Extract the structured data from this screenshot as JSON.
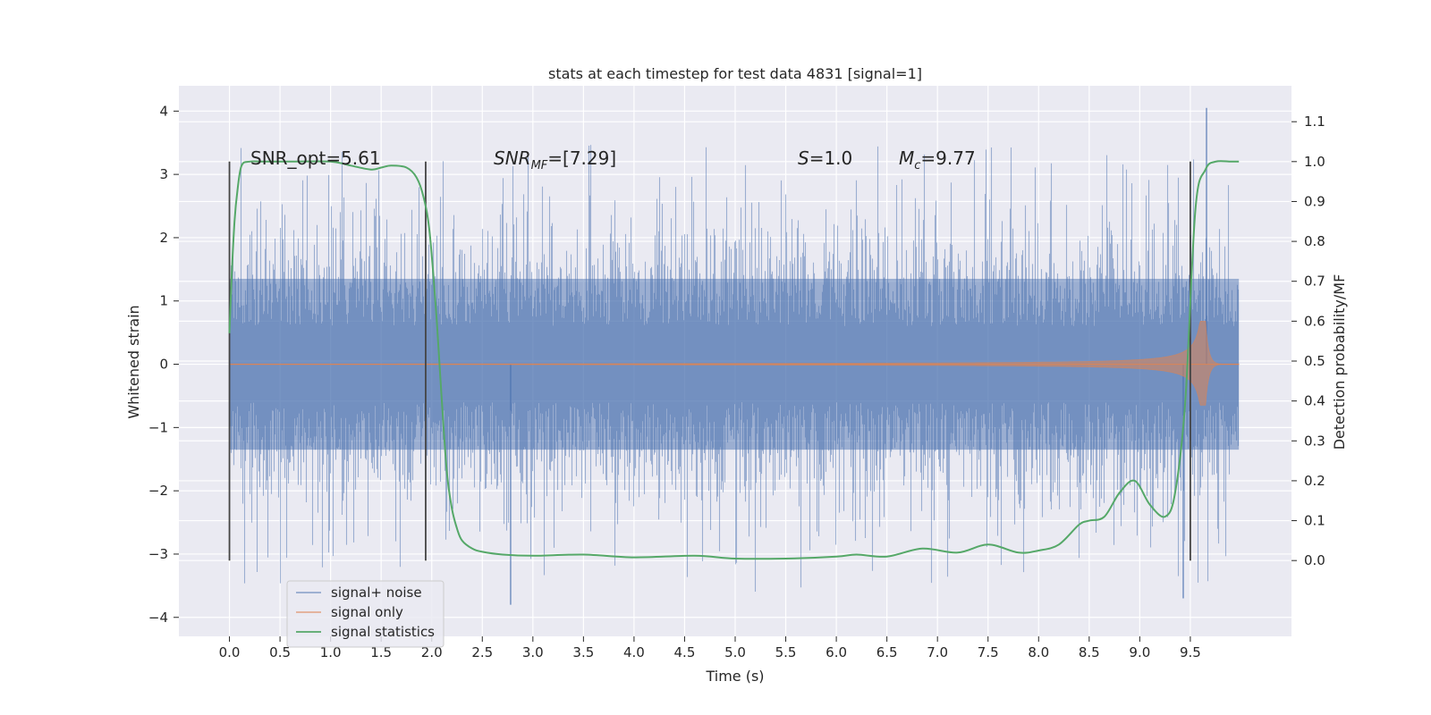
{
  "chart_data": {
    "type": "line",
    "title": "stats at each timestep for test data 4831 [signal=1]",
    "xlabel": "Time (s)",
    "ylabel_left": "Whitened strain",
    "ylabel_right": "Detection probability/MF",
    "xlim": [
      -0.5,
      10.5
    ],
    "ylim_left": [
      -4.3,
      4.4
    ],
    "ylim_right": [
      -0.19,
      1.19
    ],
    "x_ticks": [
      0.0,
      0.5,
      1.0,
      1.5,
      2.0,
      2.5,
      3.0,
      3.5,
      4.0,
      4.5,
      5.0,
      5.5,
      6.0,
      6.5,
      7.0,
      7.5,
      8.0,
      8.5,
      9.0,
      9.5
    ],
    "x_tick_labels": [
      "0.0",
      "0.5",
      "1.0",
      "1.5",
      "2.0",
      "2.5",
      "3.0",
      "3.5",
      "4.0",
      "4.5",
      "5.0",
      "5.5",
      "6.0",
      "6.5",
      "7.0",
      "7.5",
      "8.0",
      "8.5",
      "9.0",
      "9.5"
    ],
    "y_ticks_left": [
      4,
      3,
      2,
      1,
      0,
      -1,
      -2,
      -3,
      -4
    ],
    "y_tick_labels_left": [
      "4",
      "3",
      "2",
      "1",
      "0",
      "−1",
      "−2",
      "−3",
      "−4"
    ],
    "y_ticks_right": [
      1.1,
      1.0,
      0.9,
      0.8,
      0.7,
      0.6,
      0.5,
      0.4,
      0.3,
      0.2,
      0.1,
      0.0
    ],
    "y_tick_labels_right": [
      "1.1",
      "1.0",
      "0.9",
      "0.8",
      "0.7",
      "0.6",
      "0.5",
      "0.4",
      "0.3",
      "0.2",
      "0.1",
      "0.0"
    ],
    "annotations": {
      "snr_opt": "SNR_opt=5.61",
      "snr_mf_prefix": "SNR",
      "snr_mf_sub": "MF",
      "snr_mf_value": "=[7.29]",
      "s_label": "S",
      "s_value": "=1.0",
      "mc_label": "M",
      "mc_sub": "c",
      "mc_value": "=9.77"
    },
    "legend": {
      "position": "lower-left",
      "entries": [
        "signal+ noise",
        "signal only",
        "signal statistics"
      ]
    },
    "series": [
      {
        "name": "signal+ noise",
        "axis": "left",
        "color": "#4c72b0",
        "style": "dense noise, amplitude ~1.3 core with spikes to ±3.5",
        "x_range": [
          0.0,
          9.98
        ],
        "peak_max": 4.05,
        "peak_min": -3.8
      },
      {
        "name": "signal only",
        "axis": "left",
        "color": "#dd8452",
        "style": "chirp growing towards merger",
        "x_range": [
          0.0,
          9.98
        ],
        "merger_time": 9.65,
        "peak_amplitude": 0.68
      },
      {
        "name": "signal statistics",
        "axis": "right",
        "color": "#55a868",
        "x": [
          0.0,
          0.02,
          0.05,
          0.08,
          0.12,
          0.2,
          0.35,
          0.6,
          1.0,
          1.2,
          1.4,
          1.5,
          1.6,
          1.75,
          1.85,
          1.92,
          1.98,
          2.05,
          2.1,
          2.15,
          2.2,
          2.25,
          2.3,
          2.4,
          2.5,
          2.7,
          3.0,
          3.5,
          4.0,
          4.6,
          5.0,
          5.5,
          6.0,
          6.2,
          6.5,
          6.85,
          7.2,
          7.5,
          7.8,
          8.0,
          8.2,
          8.4,
          8.5,
          8.65,
          8.8,
          8.95,
          9.1,
          9.25,
          9.35,
          9.45,
          9.55,
          9.65,
          9.75,
          9.9,
          9.98
        ],
        "y": [
          0.57,
          0.7,
          0.85,
          0.93,
          0.99,
          1.0,
          1.0,
          1.0,
          1.0,
          0.99,
          0.98,
          0.985,
          0.99,
          0.985,
          0.96,
          0.91,
          0.82,
          0.6,
          0.4,
          0.22,
          0.13,
          0.08,
          0.05,
          0.03,
          0.022,
          0.015,
          0.012,
          0.015,
          0.008,
          0.012,
          0.005,
          0.005,
          0.01,
          0.015,
          0.01,
          0.03,
          0.02,
          0.04,
          0.02,
          0.025,
          0.04,
          0.09,
          0.1,
          0.11,
          0.17,
          0.2,
          0.14,
          0.11,
          0.17,
          0.4,
          0.88,
          0.98,
          1.0,
          1.0,
          1.0
        ]
      }
    ],
    "vertical_markers": [
      0.0,
      1.94,
      9.5
    ],
    "vertical_marker_color": "#444444"
  }
}
